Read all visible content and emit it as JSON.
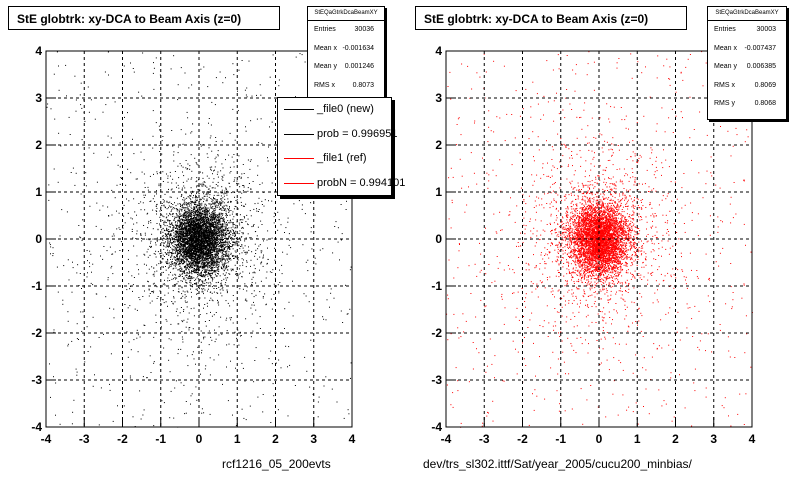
{
  "chart_data": [
    {
      "type": "scatter",
      "title": "StE globtrk: xy-DCA to Beam Axis (z=0)",
      "xlim": [
        -4,
        4
      ],
      "ylim": [
        -4,
        4
      ],
      "xticks": [
        "-4",
        "-3",
        "-2",
        "-1",
        "0",
        "1",
        "2",
        "3",
        "4"
      ],
      "yticks": [
        "-4",
        "-3",
        "-2",
        "-1",
        "0",
        "1",
        "2",
        "3",
        "4"
      ],
      "grid": true,
      "marker_color": "#000000",
      "stats": {
        "name": "StEQaGtrkDcaBeamXY",
        "rows": [
          {
            "label": "Entries",
            "value": "30036"
          },
          {
            "label": "Mean x",
            "value": "-0.001634"
          },
          {
            "label": "Mean y",
            "value": "0.001246"
          },
          {
            "label": "RMS x",
            "value": "0.8073"
          }
        ]
      },
      "legend": {
        "position": "top-right",
        "entries": [
          {
            "text": "_file0 (new)",
            "color": "#000000"
          },
          {
            "text": "prob = 0.996951",
            "color": "#000000"
          },
          {
            "text": "_file1 (ref)",
            "color": "#ff0000"
          },
          {
            "text": "probN = 0.994101",
            "color": "#ff0000"
          }
        ]
      },
      "footer": "rcf1216_05_200evts"
    },
    {
      "type": "scatter",
      "title": "StE globtrk: xy-DCA to Beam Axis (z=0)",
      "xlim": [
        -4,
        4
      ],
      "ylim": [
        -4,
        4
      ],
      "xticks": [
        "-4",
        "-3",
        "-2",
        "-1",
        "0",
        "1",
        "2",
        "3",
        "4"
      ],
      "yticks": [
        "-4",
        "-3",
        "-2",
        "-1",
        "0",
        "1",
        "2",
        "3",
        "4"
      ],
      "grid": true,
      "marker_color": "#ff0000",
      "stats": {
        "name": "StEQaGtrkDcaBeamXY",
        "rows": [
          {
            "label": "Entries",
            "value": "30003"
          },
          {
            "label": "Mean x",
            "value": "-0.007437"
          },
          {
            "label": "Mean y",
            "value": "0.006385"
          },
          {
            "label": "RMS x",
            "value": "0.8069"
          },
          {
            "label": "RMS y",
            "value": "0.8068"
          }
        ]
      },
      "footer": "dev/trs_sl302.ittf/Sat/year_2005/cucu200_minbias/"
    }
  ]
}
